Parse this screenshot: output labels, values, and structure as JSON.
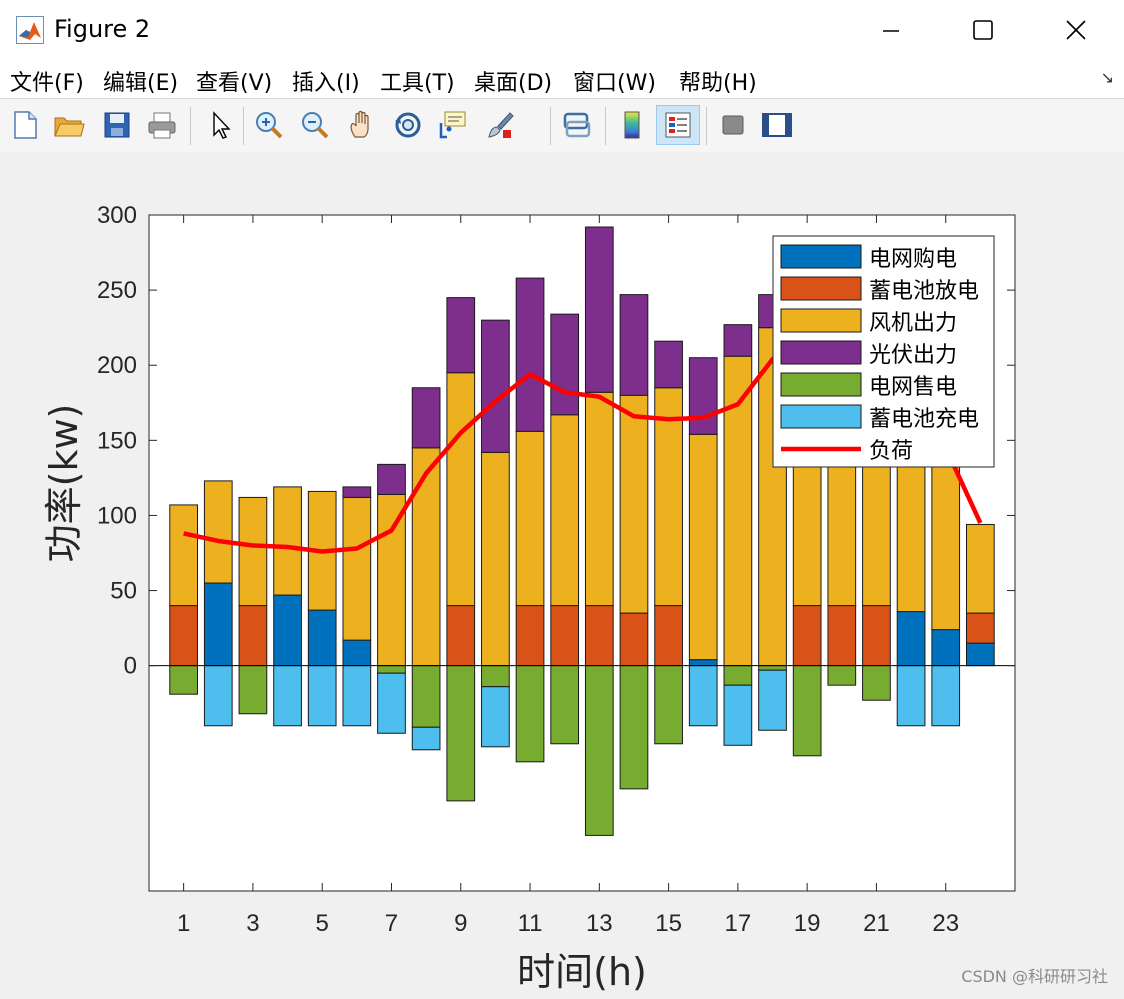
{
  "window": {
    "title": "Figure 2"
  },
  "menu": [
    "文件(F)",
    "编辑(E)",
    "查看(V)",
    "插入(I)",
    "工具(T)",
    "桌面(D)",
    "窗口(W)",
    "帮助(H)"
  ],
  "toolbar": {
    "icons": [
      "new-file-icon",
      "open-folder-icon",
      "save-icon",
      "print-icon",
      "pointer-icon",
      "zoom-in-icon",
      "zoom-out-icon",
      "pan-icon",
      "rotate-3d-icon",
      "data-cursor-icon",
      "brush-icon",
      "link-icon",
      "colorbar-icon",
      "legend-icon",
      "hide-plot-tools-icon",
      "show-plot-tools-icon"
    ]
  },
  "watermark": "CSDN @科研研习社",
  "chart_data": {
    "type": "bar",
    "stacked": true,
    "xlabel": "时间(h)",
    "ylabel": "功率(kw)",
    "x": [
      1,
      2,
      3,
      4,
      5,
      6,
      7,
      8,
      9,
      10,
      11,
      12,
      13,
      14,
      15,
      16,
      17,
      18,
      19,
      20,
      21,
      22,
      23,
      24
    ],
    "xticks": [
      1,
      3,
      5,
      7,
      9,
      11,
      13,
      15,
      17,
      19,
      21,
      23
    ],
    "yticks": [
      0,
      50,
      100,
      150,
      200,
      250,
      300
    ],
    "ylim": [
      -150,
      300
    ],
    "xlim": [
      0,
      25
    ],
    "legend_position": "top-right",
    "series": [
      {
        "name": "电网购电",
        "color": "#0072bd",
        "values": [
          0,
          55,
          0,
          47,
          37,
          17,
          0,
          0,
          0,
          0,
          0,
          0,
          0,
          0,
          0,
          4,
          0,
          0,
          0,
          0,
          0,
          36,
          24,
          15
        ]
      },
      {
        "name": "蓄电池放电",
        "color": "#d95319",
        "values": [
          40,
          0,
          40,
          0,
          0,
          0,
          0,
          0,
          40,
          0,
          40,
          40,
          40,
          35,
          40,
          0,
          0,
          0,
          40,
          40,
          40,
          0,
          0,
          20
        ]
      },
      {
        "name": "风机出力",
        "color": "#edb120",
        "values": [
          67,
          68,
          72,
          72,
          79,
          95,
          114,
          145,
          155,
          142,
          116,
          127,
          142,
          145,
          145,
          150,
          206,
          225,
          180,
          180,
          180,
          185,
          185,
          59
        ]
      },
      {
        "name": "光伏出力",
        "color": "#7e2f8e",
        "values": [
          0,
          0,
          0,
          0,
          0,
          7,
          20,
          40,
          50,
          88,
          102,
          67,
          110,
          67,
          31,
          51,
          21,
          22,
          0,
          0,
          0,
          0,
          0,
          0
        ]
      },
      {
        "name": "电网售电",
        "color": "#77ac30",
        "values": [
          -19,
          0,
          -32,
          0,
          0,
          0,
          -5,
          -41,
          -90,
          -14,
          -64,
          -52,
          -113,
          -82,
          -52,
          0,
          -13,
          -3,
          -60,
          -13,
          -23,
          0,
          0,
          0
        ]
      },
      {
        "name": "蓄电池充电",
        "color": "#4dbeee",
        "values": [
          0,
          -40,
          0,
          -40,
          -40,
          -40,
          -40,
          -15,
          0,
          -40,
          0,
          0,
          0,
          0,
          0,
          -40,
          -40,
          -40,
          0,
          0,
          0,
          -40,
          -40,
          0
        ]
      }
    ],
    "line": {
      "name": "负荷",
      "color": "#ff0000",
      "values": [
        88,
        83,
        80,
        79,
        76,
        78,
        90,
        128,
        155,
        176,
        194,
        182,
        179,
        166,
        164,
        165,
        174,
        204,
        220,
        215,
        200,
        195,
        145,
        95
      ]
    }
  }
}
